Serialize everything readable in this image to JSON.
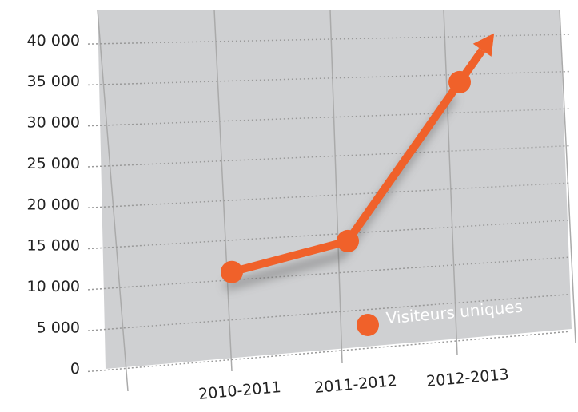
{
  "chart_data": {
    "type": "line",
    "categories": [
      "2010-2011",
      "2011-2012",
      "2012-2013"
    ],
    "series": [
      {
        "name": "Visiteurs uniques",
        "color": "#f0612a",
        "values": [
          11000,
          14000,
          34000
        ]
      }
    ],
    "ylim": [
      0,
      40000
    ],
    "yticks": [
      {
        "value": 0,
        "label": "0"
      },
      {
        "value": 5000,
        "label": "5 000"
      },
      {
        "value": 10000,
        "label": "10 000"
      },
      {
        "value": 15000,
        "label": "15 000"
      },
      {
        "value": 20000,
        "label": "20 000"
      },
      {
        "value": 25000,
        "label": "25 000"
      },
      {
        "value": 30000,
        "label": "30 000"
      },
      {
        "value": 35000,
        "label": "35 000"
      },
      {
        "value": 40000,
        "label": "40 000"
      }
    ],
    "grid": true
  }
}
